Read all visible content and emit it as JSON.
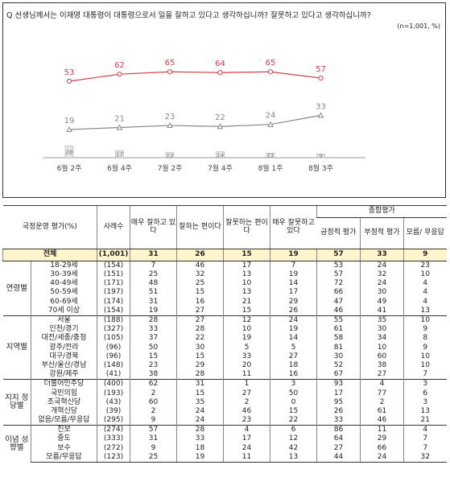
{
  "question": "Q 선생님께서는 이재명 대통령이 대통령으로서 일을 잘하고 있다고 생각하십니까? 잘못하고 있다고 생각하십니까?",
  "note": "(n=1,001, %)",
  "chart_data": {
    "type": "line",
    "categories": [
      "6월 2주",
      "6월 4주",
      "7월 2주",
      "7월 4주",
      "8월 1주",
      "8월 3주"
    ],
    "series": [
      {
        "values": [
          53,
          62,
          65,
          64,
          65,
          57
        ],
        "color": "#d0404a",
        "marker": "circle"
      },
      {
        "values": [
          19,
          21,
          23,
          22,
          24,
          33
        ],
        "color": "#888888",
        "marker": "triangle"
      }
    ],
    "bars": {
      "values": [
        28,
        17,
        12,
        14,
        11,
        9
      ],
      "color": "#e6e6e6"
    }
  },
  "table": {
    "headers": {
      "category": "국정운영 평가(%)",
      "sample": "사례수",
      "c1": "매우 잘하고 있다",
      "c2": "잘하는 편이다",
      "c3": "잘못하는 편이다",
      "c4": "매우 잘못하고 있다",
      "summary": "종합평가",
      "s1": "긍정적 평가",
      "s2": "부정적 평가",
      "s3": "모름/ 무응답"
    },
    "total": {
      "label": "전체",
      "n": "(1,001)",
      "v": [
        "31",
        "26",
        "15",
        "19",
        "57",
        "33",
        "9"
      ]
    },
    "groups": [
      {
        "name": "연령별",
        "rows": [
          {
            "label": "18-29세",
            "n": "(154)",
            "v": [
              "7",
              "46",
              "17",
              "7",
              "53",
              "24",
              "23"
            ]
          },
          {
            "label": "30-39세",
            "n": "(151)",
            "v": [
              "25",
              "32",
              "13",
              "19",
              "57",
              "32",
              "10"
            ]
          },
          {
            "label": "40-49세",
            "n": "(171)",
            "v": [
              "48",
              "25",
              "10",
              "14",
              "72",
              "24",
              "4"
            ]
          },
          {
            "label": "50-59세",
            "n": "(197)",
            "v": [
              "51",
              "15",
              "13",
              "17",
              "66",
              "30",
              "4"
            ]
          },
          {
            "label": "60-69세",
            "n": "(174)",
            "v": [
              "31",
              "16",
              "21",
              "29",
              "47",
              "49",
              "4"
            ]
          },
          {
            "label": "70세 이상",
            "n": "(154)",
            "v": [
              "19",
              "27",
              "15",
              "26",
              "46",
              "41",
              "13"
            ]
          }
        ]
      },
      {
        "name": "지역별",
        "rows": [
          {
            "label": "서울",
            "n": "(188)",
            "v": [
              "28",
              "27",
              "12",
              "24",
              "55",
              "35",
              "10"
            ]
          },
          {
            "label": "인천/경기",
            "n": "(327)",
            "v": [
              "33",
              "28",
              "10",
              "19",
              "61",
              "30",
              "9"
            ]
          },
          {
            "label": "대전/세종/충청",
            "n": "(105)",
            "v": [
              "37",
              "22",
              "19",
              "14",
              "58",
              "34",
              "8"
            ]
          },
          {
            "label": "광주/전라",
            "n": "(96)",
            "v": [
              "50",
              "30",
              "5",
              "5",
              "81",
              "10",
              "9"
            ]
          },
          {
            "label": "대구/경북",
            "n": "(96)",
            "v": [
              "15",
              "15",
              "33",
              "27",
              "30",
              "60",
              "10"
            ]
          },
          {
            "label": "부산/울산/경남",
            "n": "(148)",
            "v": [
              "23",
              "29",
              "20",
              "18",
              "52",
              "38",
              "10"
            ]
          },
          {
            "label": "강원/제주",
            "n": "(41)",
            "v": [
              "38",
              "28",
              "11",
              "16",
              "67",
              "27",
              "7"
            ]
          }
        ]
      },
      {
        "name": "지지 정당별",
        "rows": [
          {
            "label": "더불어민주당",
            "n": "(400)",
            "v": [
              "62",
              "31",
              "1",
              "3",
              "93",
              "4",
              "3"
            ]
          },
          {
            "label": "국민의힘",
            "n": "(193)",
            "v": [
              "2",
              "15",
              "27",
              "50",
              "17",
              "77",
              "6"
            ]
          },
          {
            "label": "조국혁신당",
            "n": "(43)",
            "v": [
              "60",
              "35",
              "2",
              "0",
              "95",
              "2",
              "3"
            ]
          },
          {
            "label": "개혁신당",
            "n": "(39)",
            "v": [
              "2",
              "24",
              "46",
              "15",
              "26",
              "61",
              "13"
            ]
          },
          {
            "label": "없음/모름/무응답",
            "n": "(295)",
            "v": [
              "9",
              "24",
              "23",
              "22",
              "33",
              "46",
              "21"
            ]
          }
        ]
      },
      {
        "name": "이념 성향별",
        "rows": [
          {
            "label": "진보",
            "n": "(274)",
            "v": [
              "57",
              "28",
              "4",
              "6",
              "86",
              "11",
              "4"
            ]
          },
          {
            "label": "중도",
            "n": "(333)",
            "v": [
              "31",
              "33",
              "17",
              "12",
              "64",
              "29",
              "7"
            ]
          },
          {
            "label": "보수",
            "n": "(272)",
            "v": [
              "9",
              "18",
              "24",
              "42",
              "27",
              "66",
              "7"
            ]
          },
          {
            "label": "모름/무응답",
            "n": "(123)",
            "v": [
              "25",
              "19",
              "11",
              "13",
              "44",
              "24",
              "32"
            ]
          }
        ]
      }
    ]
  }
}
